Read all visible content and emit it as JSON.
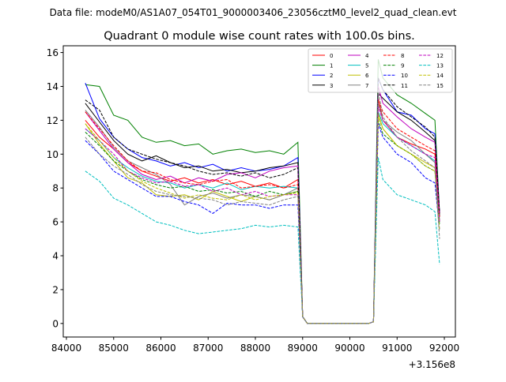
{
  "chart_data": {
    "type": "line",
    "suptitle": "Data file: modeM0/AS1A07_054T01_9000003406_23056cztM0_level2_quad_clean.evt",
    "title": "Quadrant 0 module wise count rates with 100.0s bins.",
    "xlabel": "",
    "ylabel": "",
    "x_offset_label": "+3.156e8",
    "xlim": [
      83933,
      92234
    ],
    "ylim": [
      -0.8,
      16.4
    ],
    "xticks": [
      84000,
      85000,
      86000,
      87000,
      88000,
      89000,
      90000,
      91000,
      92000
    ],
    "yticks": [
      0,
      2,
      4,
      6,
      8,
      10,
      12,
      14,
      16
    ],
    "legend_placement": "top-right",
    "x": [
      84400,
      84700,
      85000,
      85300,
      85600,
      85900,
      86200,
      86500,
      86800,
      87100,
      87400,
      87700,
      88000,
      88300,
      88600,
      88900,
      89000,
      89100,
      90400,
      90500,
      90600,
      90700,
      91000,
      91300,
      91600,
      91800,
      91900
    ],
    "series": [
      {
        "name": "0",
        "color": "#ff0000",
        "dash": false,
        "values": [
          12.0,
          11.0,
          10.3,
          9.5,
          9.0,
          8.7,
          8.4,
          8.6,
          8.3,
          8.5,
          8.2,
          8.4,
          8.1,
          8.3,
          8.0,
          8.5,
          0.4,
          0,
          0,
          0.1,
          13.3,
          12.0,
          11.0,
          10.6,
          10.3,
          10.0,
          6.5
        ]
      },
      {
        "name": "1",
        "color": "#008000",
        "dash": false,
        "values": [
          14.1,
          14.0,
          12.3,
          12.0,
          11.0,
          10.7,
          10.8,
          10.5,
          10.6,
          10.0,
          10.2,
          10.3,
          10.1,
          10.2,
          10.0,
          10.7,
          0.4,
          0,
          0,
          0.1,
          15.6,
          14.5,
          13.5,
          13.0,
          12.4,
          12.0,
          6.5
        ]
      },
      {
        "name": "2",
        "color": "#0000ff",
        "dash": false,
        "values": [
          14.2,
          12.1,
          11.0,
          10.3,
          9.8,
          9.6,
          9.3,
          9.5,
          9.2,
          9.4,
          9.0,
          9.2,
          9.0,
          9.1,
          9.3,
          9.8,
          0.4,
          0,
          0,
          0.1,
          14.5,
          13.8,
          12.5,
          12.3,
          11.5,
          11.2,
          6.5
        ]
      },
      {
        "name": "3",
        "color": "#000000",
        "dash": false,
        "values": [
          13.0,
          11.9,
          10.8,
          10.0,
          9.6,
          9.9,
          9.5,
          9.2,
          9.3,
          9.0,
          9.1,
          8.9,
          9.0,
          9.2,
          9.3,
          9.5,
          0.4,
          0,
          0,
          0.1,
          13.6,
          13.3,
          12.5,
          12.0,
          11.3,
          10.8,
          6.3
        ]
      },
      {
        "name": "4",
        "color": "#bf00bf",
        "dash": false,
        "values": [
          12.5,
          11.4,
          10.3,
          9.5,
          8.8,
          8.5,
          8.7,
          8.3,
          8.6,
          8.4,
          8.8,
          8.9,
          8.6,
          9.0,
          9.2,
          9.3,
          0.4,
          0,
          0,
          0.1,
          14.0,
          13.0,
          12.2,
          11.5,
          11.0,
          10.7,
          6.5
        ]
      },
      {
        "name": "5",
        "color": "#00bfbf",
        "dash": false,
        "values": [
          11.5,
          10.8,
          9.8,
          9.2,
          8.7,
          8.4,
          8.3,
          8.0,
          8.2,
          8.0,
          8.3,
          7.9,
          8.1,
          8.0,
          8.1,
          8.0,
          0.4,
          0,
          0,
          0.1,
          12.5,
          11.8,
          11.0,
          10.5,
          10.0,
          9.6,
          6.0
        ]
      },
      {
        "name": "6",
        "color": "#bfbf00",
        "dash": false,
        "values": [
          11.8,
          10.6,
          9.6,
          8.6,
          8.3,
          7.6,
          7.5,
          7.6,
          7.3,
          7.8,
          7.5,
          7.2,
          7.5,
          7.3,
          7.6,
          7.8,
          0.4,
          0,
          0,
          0.1,
          12.4,
          11.5,
          10.5,
          10.0,
          9.5,
          9.2,
          6.0
        ]
      },
      {
        "name": "7",
        "color": "#808080",
        "dash": false,
        "values": [
          12.6,
          11.6,
          10.4,
          9.6,
          9.2,
          8.8,
          8.2,
          7.0,
          7.5,
          7.7,
          7.4,
          7.6,
          7.5,
          7.3,
          7.6,
          8.0,
          0.4,
          0,
          0,
          0.1,
          13.0,
          12.0,
          11.3,
          10.8,
          10.0,
          9.5,
          6.0
        ]
      },
      {
        "name": "8",
        "color": "#ff0000",
        "dash": true,
        "values": [
          12.5,
          11.5,
          10.5,
          9.6,
          9.0,
          8.9,
          8.5,
          8.3,
          8.2,
          8.4,
          8.5,
          8.0,
          8.1,
          8.2,
          8.0,
          8.2,
          0.4,
          0,
          0,
          0.1,
          13.2,
          12.5,
          11.5,
          11.0,
          10.5,
          10.2,
          6.3
        ]
      },
      {
        "name": "9",
        "color": "#008000",
        "dash": true,
        "values": [
          11.3,
          10.5,
          9.6,
          9.0,
          8.5,
          8.2,
          8.0,
          8.1,
          7.8,
          7.9,
          7.7,
          7.8,
          7.5,
          7.8,
          7.6,
          7.8,
          0.4,
          0,
          0,
          0.1,
          12.0,
          11.2,
          10.5,
          10.0,
          9.3,
          9.0,
          5.8
        ]
      },
      {
        "name": "10",
        "color": "#0000ff",
        "dash": true,
        "values": [
          10.8,
          10.0,
          9.0,
          8.5,
          8.0,
          7.5,
          7.5,
          7.2,
          7.0,
          6.5,
          7.1,
          7.0,
          7.0,
          6.8,
          7.0,
          7.0,
          0.4,
          0,
          0,
          0.1,
          11.8,
          11.0,
          10.0,
          9.5,
          8.6,
          8.3,
          5.5
        ]
      },
      {
        "name": "11",
        "color": "#000000",
        "dash": true,
        "values": [
          13.2,
          12.6,
          11.0,
          10.3,
          10.0,
          9.7,
          9.5,
          9.3,
          9.0,
          8.8,
          8.9,
          8.7,
          8.9,
          8.6,
          8.8,
          9.2,
          0.4,
          0,
          0,
          0.1,
          14.5,
          13.8,
          12.8,
          12.2,
          11.6,
          11.0,
          6.5
        ]
      },
      {
        "name": "12",
        "color": "#bf00bf",
        "dash": true,
        "values": [
          11.5,
          10.8,
          10.0,
          9.0,
          8.6,
          8.3,
          8.4,
          8.1,
          8.2,
          7.8,
          8.0,
          7.6,
          7.8,
          7.5,
          7.6,
          7.6,
          0.4,
          0,
          0,
          0.1,
          12.8,
          12.0,
          11.0,
          10.5,
          10.0,
          9.8,
          6.0
        ]
      },
      {
        "name": "13",
        "color": "#00bfbf",
        "dash": true,
        "values": [
          9.0,
          8.4,
          7.4,
          7.0,
          6.5,
          6.0,
          5.8,
          5.5,
          5.3,
          5.4,
          5.5,
          5.6,
          5.8,
          5.7,
          5.8,
          5.7,
          0.4,
          0,
          0,
          0.1,
          9.8,
          8.5,
          7.6,
          7.3,
          7.0,
          6.6,
          3.5
        ]
      },
      {
        "name": "14",
        "color": "#bfbf00",
        "dash": true,
        "values": [
          11.8,
          10.8,
          9.8,
          9.0,
          8.4,
          8.0,
          7.7,
          7.4,
          7.6,
          7.4,
          7.3,
          7.6,
          7.3,
          7.5,
          7.6,
          7.7,
          0.4,
          0,
          0,
          0.1,
          12.2,
          11.5,
          10.5,
          10.0,
          9.3,
          9.0,
          5.5
        ]
      },
      {
        "name": "15",
        "color": "#808080",
        "dash": true,
        "values": [
          11.0,
          10.0,
          9.3,
          8.8,
          8.2,
          7.8,
          7.6,
          7.5,
          7.4,
          7.3,
          7.0,
          7.2,
          7.1,
          7.0,
          7.3,
          7.5,
          0.4,
          0,
          0,
          0.1,
          13.8,
          12.2,
          11.0,
          10.2,
          9.6,
          9.2,
          5.0
        ]
      }
    ]
  }
}
